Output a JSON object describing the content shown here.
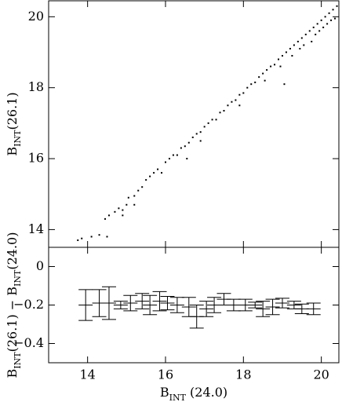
{
  "chart_data": [
    {
      "type": "scatter",
      "ylabel": [
        "B",
        "INT",
        "(26.1)"
      ],
      "xlim": [
        13,
        20.45
      ],
      "ylim": [
        13.5,
        20.45
      ],
      "yticks": [
        14,
        16,
        18,
        20
      ],
      "color": "#000000",
      "x": [
        13.75,
        13.85,
        14.1,
        14.3,
        14.5,
        14.45,
        14.55,
        14.7,
        14.8,
        14.9,
        15.0,
        15.05,
        15.2,
        15.3,
        15.4,
        15.5,
        15.6,
        15.7,
        15.8,
        15.9,
        16.0,
        16.1,
        16.2,
        16.3,
        16.4,
        16.5,
        16.55,
        16.6,
        16.7,
        16.8,
        16.9,
        17.0,
        17.1,
        17.2,
        17.3,
        17.4,
        17.5,
        17.6,
        17.7,
        17.8,
        17.9,
        18.0,
        18.1,
        18.2,
        18.3,
        18.4,
        18.5,
        18.55,
        18.6,
        18.7,
        18.8,
        18.9,
        18.95,
        19.0,
        19.05,
        19.1,
        19.2,
        19.25,
        19.3,
        19.4,
        19.45,
        19.5,
        19.55,
        19.6,
        19.7,
        19.75,
        19.8,
        19.85,
        19.9,
        19.95,
        20.0,
        20.05,
        20.1,
        20.15,
        20.2,
        20.25,
        20.3,
        20.35,
        20.4,
        17.9,
        16.9,
        15.2,
        14.9
      ],
      "y": [
        13.7,
        13.75,
        13.8,
        13.85,
        13.8,
        14.3,
        14.4,
        14.5,
        14.6,
        14.55,
        14.7,
        14.9,
        14.95,
        15.1,
        15.2,
        15.4,
        15.5,
        15.6,
        15.7,
        15.6,
        15.9,
        16.0,
        16.1,
        16.1,
        16.3,
        16.35,
        16.0,
        16.45,
        16.6,
        16.7,
        16.75,
        16.9,
        17.0,
        17.1,
        17.1,
        17.3,
        17.35,
        17.5,
        17.6,
        17.65,
        17.8,
        17.85,
        18.0,
        18.1,
        18.15,
        18.3,
        18.4,
        18.2,
        18.5,
        18.6,
        18.65,
        18.8,
        18.6,
        18.9,
        18.1,
        19.0,
        19.1,
        18.9,
        19.2,
        19.3,
        19.1,
        19.4,
        19.2,
        19.5,
        19.6,
        19.3,
        19.7,
        19.5,
        19.8,
        19.6,
        19.9,
        19.7,
        20.0,
        19.8,
        20.1,
        19.9,
        20.2,
        19.95,
        20.3,
        17.5,
        16.5,
        14.7,
        14.4
      ]
    },
    {
      "type": "errorbar",
      "ylabel": [
        "B",
        "INT",
        "(26.1)  −  B",
        "INT",
        "(24.0)"
      ],
      "xlabel": [
        "B",
        "INT",
        " (24.0)"
      ],
      "xlim": [
        13,
        20.45
      ],
      "ylim": [
        -0.5,
        0.1
      ],
      "xticks": [
        14,
        16,
        18,
        20
      ],
      "yticks": [
        0,
        {
          "value": -0.2,
          "label": "−0.2"
        },
        {
          "value": -0.4,
          "label": "−0.4"
        }
      ],
      "color": "#000000",
      "x": [
        13.95,
        14.3,
        14.55,
        14.85,
        15.1,
        15.4,
        15.6,
        15.85,
        16.05,
        16.3,
        16.6,
        16.8,
        17.05,
        17.25,
        17.5,
        17.75,
        18.05,
        18.3,
        18.5,
        18.75,
        19.0,
        19.3,
        19.5,
        19.8
      ],
      "y": [
        -0.2,
        -0.19,
        -0.19,
        -0.2,
        -0.19,
        -0.18,
        -0.2,
        -0.18,
        -0.19,
        -0.2,
        -0.21,
        -0.26,
        -0.22,
        -0.2,
        -0.17,
        -0.2,
        -0.2,
        -0.2,
        -0.22,
        -0.21,
        -0.19,
        -0.2,
        -0.22,
        -0.22
      ],
      "errors": [
        0.08,
        0.07,
        0.085,
        0.02,
        0.04,
        0.04,
        0.05,
        0.05,
        0.035,
        0.04,
        0.05,
        0.06,
        0.04,
        0.04,
        0.03,
        0.03,
        0.03,
        0.015,
        0.04,
        0.04,
        0.025,
        0.02,
        0.025,
        0.03
      ]
    }
  ]
}
